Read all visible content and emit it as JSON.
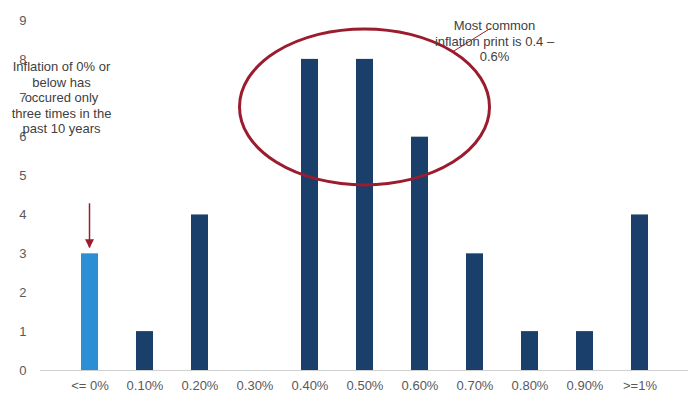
{
  "chart_data": {
    "type": "bar",
    "categories": [
      "<= 0%",
      "0.10%",
      "0.20%",
      "0.30%",
      "0.40%",
      "0.50%",
      "0.60%",
      "0.70%",
      "0.80%",
      "0.90%",
      ">=1%"
    ],
    "values": [
      3,
      1,
      4,
      0,
      8,
      8,
      6,
      3,
      1,
      1,
      4
    ],
    "colors": [
      "#2b8fd6",
      "#1a3f6b",
      "#1a3f6b",
      "#1a3f6b",
      "#1a3f6b",
      "#1a3f6b",
      "#1a3f6b",
      "#1a3f6b",
      "#1a3f6b",
      "#1a3f6b",
      "#1a3f6b"
    ],
    "ylim": [
      0,
      9
    ],
    "yticks": [
      0,
      1,
      2,
      3,
      4,
      5,
      6,
      7,
      8,
      9
    ],
    "grid": false,
    "annotations": [
      {
        "text": "Inflation of 0% or below has occured only three times in the past 10 years"
      },
      {
        "text": "Most common inflation print is 0.4 – 0.6%"
      }
    ]
  }
}
